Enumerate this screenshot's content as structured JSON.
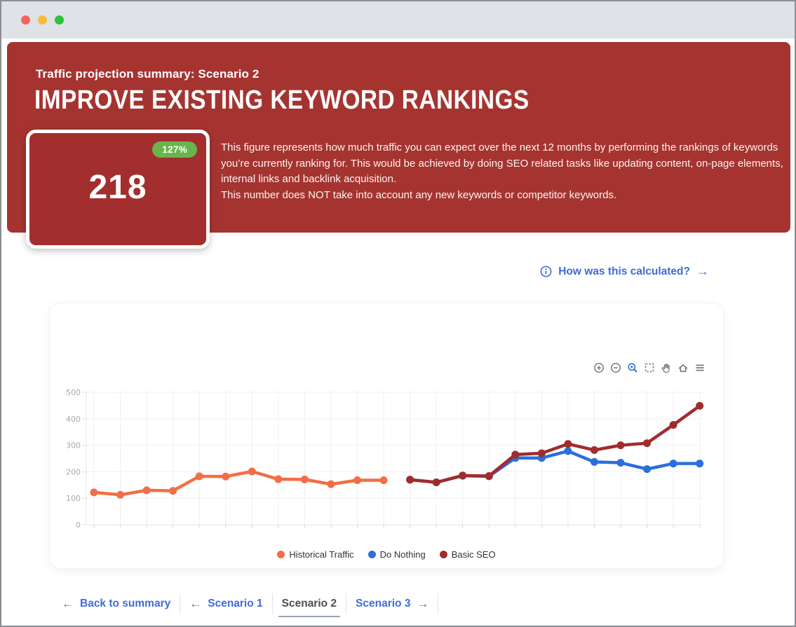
{
  "window": {
    "controls": [
      {
        "name": "close",
        "color": "#f4635d"
      },
      {
        "name": "minimize",
        "color": "#f8bc3c"
      },
      {
        "name": "maximize",
        "color": "#2ec03e"
      }
    ]
  },
  "banner": {
    "eyebrow": "Traffic projection summary: Scenario 2",
    "title": "IMPROVE EXISTING KEYWORD RANKINGS",
    "background_color": "#a53431",
    "stat_card": {
      "value": "218",
      "badge": "127%",
      "badge_color": "#69b54d"
    },
    "description": [
      "This figure represents how much traffic you can expect over the next 12 months by performing the rankings of keywords you’re currently ranking for. This would be achieved by doing SEO related tasks like updating content, on-page elements, internal links and backlink acquisition.",
      "This number does NOT take into account any new keywords or competitor keywords."
    ]
  },
  "calc_link": {
    "label": "How was this calculated?",
    "arrow": "→",
    "color": "#3d6cd7"
  },
  "chart_data": {
    "type": "line",
    "title": "",
    "xlabel": "",
    "ylabel": "",
    "x_months": 24,
    "x_tick_labels_visible": false,
    "ylim": [
      0,
      500
    ],
    "yticks": [
      0,
      100,
      200,
      300,
      400,
      500
    ],
    "grid": true,
    "legend_position": "bottom",
    "series": [
      {
        "name": "Historical Traffic",
        "color": "#f26e45",
        "start_month": 1,
        "values": [
          122,
          113,
          130,
          128,
          183,
          182,
          201,
          172,
          171,
          153,
          168,
          168
        ]
      },
      {
        "name": "Do Nothing",
        "color": "#2b6fdb",
        "start_month": 13,
        "values": [
          170,
          160,
          185,
          183,
          252,
          252,
          278,
          237,
          234,
          210,
          231,
          231
        ]
      },
      {
        "name": "Basic SEO",
        "color": "#a02c2c",
        "start_month": 13,
        "values": [
          170,
          160,
          186,
          184,
          265,
          270,
          305,
          282,
          300,
          308,
          377,
          449
        ]
      }
    ]
  },
  "chart_toolbar": {
    "icons": [
      "zoom-in-icon",
      "zoom-out-icon",
      "zoom-icon",
      "box-select-icon",
      "pan-icon",
      "home-icon",
      "menu-icon"
    ],
    "active_icon": "zoom-icon",
    "icon_color": "#777777",
    "active_color": "#2f6fd6"
  },
  "footer_nav": {
    "items": [
      {
        "label": "Back to summary",
        "arrow": "←",
        "current": false
      },
      {
        "label": "Scenario 1",
        "arrow": "←",
        "current": false
      },
      {
        "label": "Scenario 2",
        "arrow": "",
        "current": true
      },
      {
        "label": "Scenario 3",
        "arrow": "→",
        "current": false
      }
    ]
  }
}
